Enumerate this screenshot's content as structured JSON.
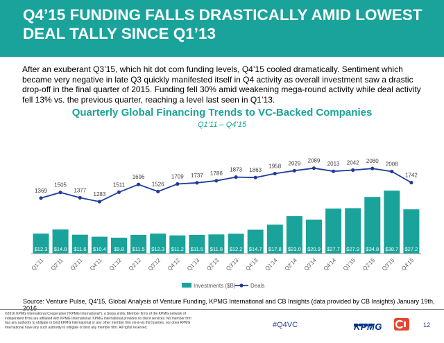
{
  "header": {
    "title_line1": "Q4’15 FUNDING FALLS DRASTICALLY AMID LOWEST",
    "title_line2": "DEAL TALLY SINCE Q1’13"
  },
  "intro_text": "After an exuberant Q3’15, which hit dot com funding levels, Q4’15 cooled dramatically. Sentiment which became very negative in late Q3 quickly manifested itself in Q4 activity as overall investment saw a drastic drop-off in the final quarter of 2015. Funding fell 30% amid weakening mega-round activity while deal activity fell 13% vs. the previous quarter, reaching a level last seen in Q1’13.",
  "chart_data": {
    "type": "bar",
    "title": "Quarterly Global Financing Trends to VC-Backed Companies",
    "subtitle": "Q1’11 – Q4’15",
    "categories": [
      "Q1'11",
      "Q2'11",
      "Q3'11",
      "Q4'11",
      "Q1'12",
      "Q2'12",
      "Q3'12",
      "Q4'12",
      "Q1'13",
      "Q2'13",
      "Q3'13",
      "Q4'13",
      "Q1'14",
      "Q2'14",
      "Q3'14",
      "Q4'14",
      "Q1'15",
      "Q2'15",
      "Q3'15",
      "Q4'15"
    ],
    "series": [
      {
        "name": "Investments ($B)",
        "type": "bar",
        "color": "#1aa39a",
        "values": [
          12.3,
          14.8,
          11.6,
          10.4,
          9.8,
          11.5,
          12.3,
          11.2,
          11.5,
          11.8,
          12.2,
          14.7,
          17.8,
          23.0,
          20.9,
          27.7,
          27.9,
          34.8,
          38.7,
          27.2
        ],
        "labels": [
          "$12.3",
          "$14.8",
          "$11.6",
          "$10.4",
          "$9.8",
          "$11.5",
          "$12.3",
          "$11.2",
          "$11.5",
          "$11.8",
          "$12.2",
          "$14.7",
          "$17.8",
          "$23.0",
          "$20.9",
          "$27.7",
          "$27.9",
          "$34.8",
          "$38.7",
          "$27.2"
        ]
      },
      {
        "name": "Deals",
        "type": "line",
        "color": "#1f3d99",
        "values": [
          1369,
          1505,
          1377,
          1283,
          1511,
          1696,
          1526,
          1709,
          1737,
          1786,
          1873,
          1863,
          1958,
          2029,
          2089,
          2013,
          2042,
          2080,
          2008,
          1742
        ]
      }
    ],
    "grid": false,
    "legend": "bottom-center",
    "y_axis_labels": false
  },
  "source_text": "Source: Venture Pulse, Q4'15, Global Analysis of Venture Funding, KPMG International and CB Insights (data provided by CB Insights) January 19th, 2016",
  "footer": {
    "copyright": "©2016 KPMG International Cooperative (\"KPMG International\"), a Swiss entity. Member firms of the KPMG network of independent firms are affiliated with KPMG International. KPMG International provides no client services. No member firm has any authority to obligate or bind KPMG International or any other member firm vis-à-vis third parties, nor does KPMG International have any such authority to obligate or bind any member firm. All rights reserved.",
    "hashtag": "#Q4VC",
    "kpmg_logo": "KPMG",
    "cb_logo_icon": "cb-insights-logo-icon",
    "page_number": "12"
  },
  "colors": {
    "banner": "#1aa39a",
    "accent": "#1aa39a",
    "deals_line": "#1f3d99"
  }
}
